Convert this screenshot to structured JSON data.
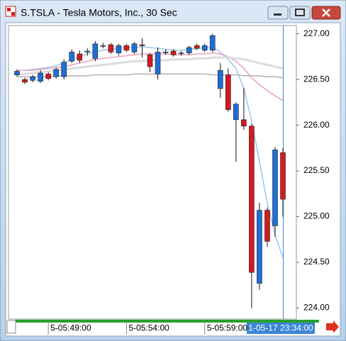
{
  "chart_data": {
    "type": "candlestick",
    "title": "S.TSLA - Tesla Motors, Inc., 30 Sec",
    "cursor_label": "1-05-17 23:34:00",
    "categories": [
      null,
      null,
      null,
      null,
      "5-05:49:00",
      null,
      null,
      null,
      null,
      null,
      null,
      null,
      null,
      null,
      "5-05:54:00",
      null,
      null,
      null,
      null,
      null,
      null,
      null,
      null,
      null,
      "5-05:59:00",
      null,
      null,
      null,
      null,
      null,
      null,
      null,
      null,
      null,
      null
    ],
    "open": [
      226.55,
      226.5,
      226.49,
      226.48,
      226.56,
      226.53,
      226.53,
      226.7,
      226.78,
      226.8,
      226.73,
      226.87,
      226.88,
      226.79,
      226.87,
      226.8,
      226.88,
      226.77,
      226.56,
      226.8,
      226.81,
      226.79,
      226.79,
      226.87,
      226.82,
      226.82,
      226.4,
      226.55,
      226.06,
      226.06,
      225.99,
      224.27,
      225.07,
      224.9,
      225.7
    ],
    "high": [
      226.61,
      226.52,
      226.55,
      226.6,
      226.58,
      226.63,
      226.72,
      226.83,
      226.82,
      226.84,
      226.92,
      226.9,
      226.9,
      226.89,
      226.89,
      226.91,
      226.95,
      226.79,
      226.85,
      226.83,
      226.83,
      226.81,
      226.87,
      226.89,
      226.89,
      227.0,
      226.68,
      226.62,
      226.25,
      226.41,
      226.01,
      225.15,
      225.1,
      225.76,
      225.75
    ],
    "low": [
      226.53,
      226.45,
      226.47,
      226.46,
      226.49,
      226.51,
      226.5,
      226.68,
      226.68,
      226.76,
      226.7,
      226.84,
      226.78,
      226.76,
      226.8,
      226.78,
      226.74,
      226.58,
      226.5,
      226.77,
      226.75,
      226.76,
      226.77,
      226.82,
      226.8,
      226.8,
      226.3,
      226.15,
      225.6,
      225.95,
      224.0,
      224.2,
      224.67,
      224.78,
      225.0
    ],
    "close": [
      226.59,
      226.47,
      226.53,
      226.57,
      226.51,
      226.61,
      226.69,
      226.8,
      226.71,
      226.81,
      226.89,
      226.87,
      226.8,
      226.87,
      226.82,
      226.89,
      226.87,
      226.64,
      226.8,
      226.8,
      226.77,
      226.79,
      226.85,
      226.84,
      226.87,
      226.98,
      226.6,
      226.17,
      226.23,
      225.99,
      224.39,
      225.07,
      224.73,
      225.73,
      225.19
    ],
    "up_color": "#1f6fd6",
    "down_color": "#d21a1f",
    "lines": [
      {
        "color": "#9cc6ea",
        "values": [
          226.6,
          226.6,
          226.61,
          226.62,
          226.63,
          226.65,
          226.68,
          226.72,
          226.75,
          226.78,
          226.8,
          226.82,
          226.83,
          226.84,
          226.85,
          226.85,
          226.86,
          226.85,
          226.84,
          226.83,
          226.82,
          226.82,
          226.83,
          226.84,
          226.85,
          226.85,
          226.8,
          226.72,
          226.62,
          226.4,
          226.05,
          225.6,
          225.15,
          224.8,
          224.55
        ]
      },
      {
        "color": "#e9a0bd",
        "values": [
          226.6,
          226.6,
          226.6,
          226.61,
          226.62,
          226.63,
          226.64,
          226.66,
          226.68,
          226.7,
          226.72,
          226.73,
          226.74,
          226.75,
          226.76,
          226.77,
          226.78,
          226.78,
          226.78,
          226.78,
          226.77,
          226.77,
          226.77,
          226.78,
          226.78,
          226.79,
          226.78,
          226.75,
          226.7,
          226.62,
          226.52,
          226.44,
          226.38,
          226.32,
          226.27
        ]
      },
      {
        "color": "#dcdcdc",
        "values": [
          226.55,
          226.56,
          226.57,
          226.58,
          226.59,
          226.6,
          226.61,
          226.62,
          226.63,
          226.64,
          226.65,
          226.66,
          226.67,
          226.68,
          226.69,
          226.7,
          226.7,
          226.71,
          226.71,
          226.71,
          226.72,
          226.72,
          226.72,
          226.73,
          226.73,
          226.74,
          226.74,
          226.74,
          226.73,
          226.72,
          226.7,
          226.68,
          226.66,
          226.64,
          226.62
        ]
      },
      {
        "color": "#b8aeb0",
        "values": [
          226.53,
          226.53,
          226.53,
          226.53,
          226.53,
          226.54,
          226.54,
          226.54,
          226.54,
          226.54,
          226.55,
          226.55,
          226.55,
          226.55,
          226.55,
          226.56,
          226.56,
          226.56,
          226.56,
          226.56,
          226.56,
          226.56,
          226.56,
          226.56,
          226.56,
          226.55,
          226.55,
          226.55,
          226.55,
          226.54,
          226.54,
          226.54,
          226.53,
          226.53,
          226.52
        ]
      }
    ],
    "ylim": [
      223.88,
      227.09
    ],
    "yticks": [
      {
        "value": 224,
        "label": "224.00"
      },
      {
        "value": 224.5,
        "label": "224.50"
      },
      {
        "value": 225,
        "label": "225.00"
      },
      {
        "value": 225.5,
        "label": "225.50"
      },
      {
        "value": 226,
        "label": "226.00"
      },
      {
        "value": 226.5,
        "label": "226.50"
      },
      {
        "value": 227,
        "label": "227.00"
      }
    ]
  }
}
